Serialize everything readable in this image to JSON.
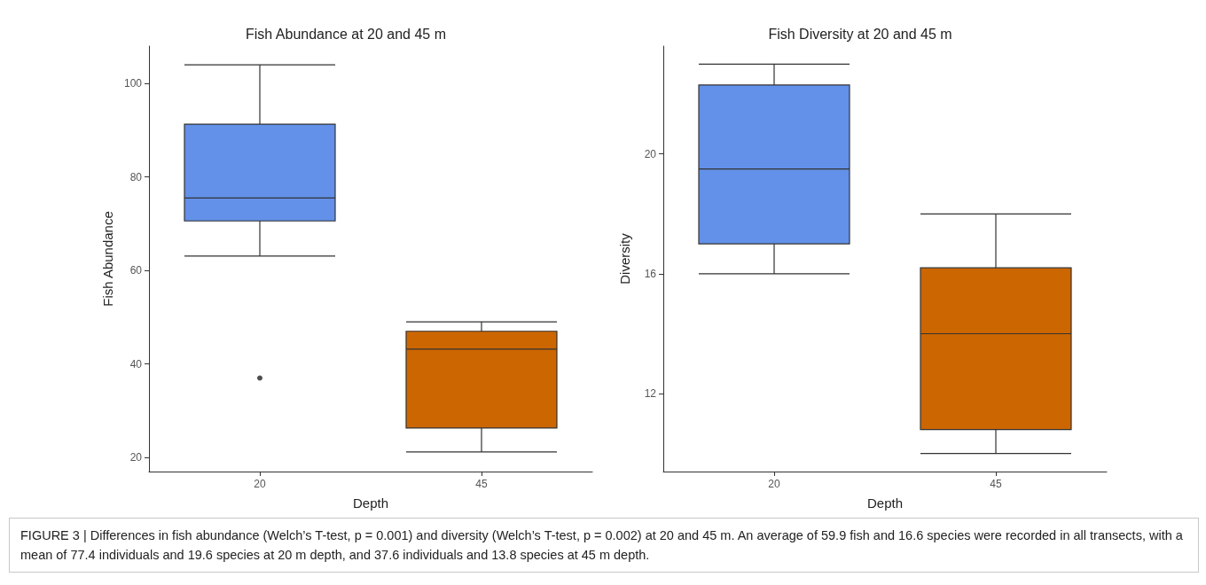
{
  "chart_data": [
    {
      "type": "box",
      "title": "Fish Abundance at 20 and 45 m",
      "xlabel": "Depth",
      "ylabel": "Fish Abundance",
      "categories": [
        "20",
        "45"
      ],
      "colors": [
        "#6390e8",
        "#cc6600"
      ],
      "ylim": [
        17,
        108
      ],
      "yticks": [
        20,
        40,
        60,
        80,
        100
      ],
      "grid": false,
      "boxes": [
        {
          "low": 63.1,
          "q1": 70.6,
          "median": 75.5,
          "q3": 91.3,
          "high": 104,
          "outliers": [
            37
          ]
        },
        {
          "low": 21.2,
          "q1": 26.3,
          "median": 43.2,
          "q3": 47.0,
          "high": 49.0
        }
      ],
      "annotations": [
        "FIGURE 3 | Differences in fish abundance (Welch’s T-test, p = 0.001) and diversity (Welch’s T-test, p = 0.002) at 20 and 45 m. An average of 59.9 fish and 16.6 species were recorded in all transects, with a mean of 77.4 individuals and 19.6 species at 20 m depth, and 37.6 individuals and 13.8 species at 45 m depth."
      ]
    },
    {
      "type": "box",
      "title": "Fish Diversity at 20 and 45 m",
      "xlabel": "Depth",
      "ylabel": "Diversity",
      "categories": [
        "20",
        "45"
      ],
      "colors": [
        "#6390e8",
        "#cc6600"
      ],
      "ylim": [
        9.4,
        23.6
      ],
      "yticks": [
        12,
        16,
        20
      ],
      "grid": false,
      "boxes": [
        {
          "low": 16.0,
          "q1": 17.0,
          "median": 19.5,
          "q3": 22.3,
          "high": 23.0
        },
        {
          "low": 10.0,
          "q1": 10.8,
          "median": 14.0,
          "q3": 16.2,
          "high": 18.0
        }
      ]
    }
  ]
}
